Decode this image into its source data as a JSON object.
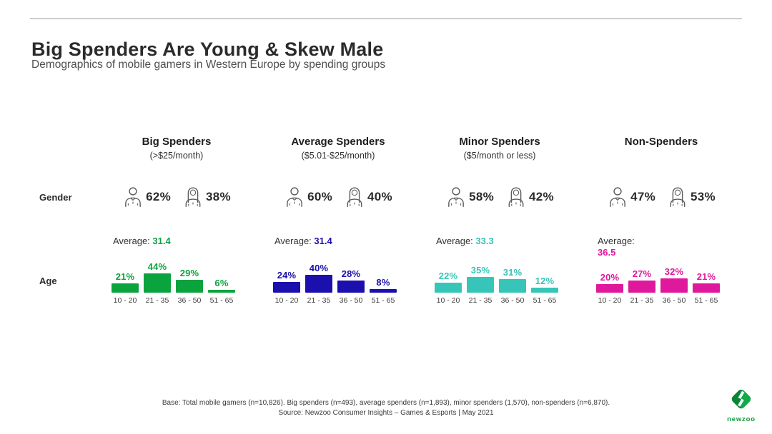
{
  "slide": {
    "title": "Big Spenders Are Young & Skew Male",
    "subtitle": "Demographics of mobile gamers in Western Europe by spending groups"
  },
  "rows": {
    "gender_label": "Gender",
    "age_label": "Age"
  },
  "average_label": "Average:",
  "age_categories": [
    "10 - 20",
    "21 - 35",
    "36 - 50",
    "51 - 65"
  ],
  "groups": [
    {
      "name": "Big Spenders",
      "range": "(>$25/month)",
      "color": "#0BA33E",
      "male_pct": "62%",
      "female_pct": "38%",
      "average": "31.4",
      "age_labels": [
        "21%",
        "44%",
        "29%",
        "6%"
      ],
      "age_values": [
        21,
        44,
        29,
        6
      ]
    },
    {
      "name": "Average Spenders",
      "range": "($5.01-$25/month)",
      "color": "#1B0FAE",
      "male_pct": "60%",
      "female_pct": "40%",
      "average": "31.4",
      "age_labels": [
        "24%",
        "40%",
        "28%",
        "8%"
      ],
      "age_values": [
        24,
        40,
        28,
        8
      ]
    },
    {
      "name": "Minor Spenders",
      "range": "($5/month or less)",
      "color": "#36C5B8",
      "male_pct": "58%",
      "female_pct": "42%",
      "average": "33.3",
      "age_labels": [
        "22%",
        "35%",
        "31%",
        "12%"
      ],
      "age_values": [
        22,
        35,
        31,
        12
      ]
    },
    {
      "name": "Non-Spenders",
      "range": "",
      "color": "#E0189C",
      "male_pct": "47%",
      "female_pct": "53%",
      "average": "36.5",
      "age_labels": [
        "20%",
        "27%",
        "32%",
        "21%"
      ],
      "age_values": [
        20,
        27,
        32,
        21
      ]
    }
  ],
  "footer": {
    "base": "Base: Total mobile gamers (n=10,826). Big spenders (n=493), average spenders (n=1,893), minor spenders (1,570), non-spenders (n=6,870).",
    "source": "Source: Newzoo Consumer Insights – Games & Esports | May 2021"
  },
  "logo": {
    "wordmark": "newzoo"
  },
  "chart_data": [
    {
      "type": "bar",
      "title": "Big Spenders (>$25/month) — Age distribution",
      "categories": [
        "10 - 20",
        "21 - 35",
        "36 - 50",
        "51 - 65"
      ],
      "values": [
        21,
        44,
        29,
        6
      ],
      "unit": "%",
      "average_age": 31.4,
      "gender": {
        "male_pct": 62,
        "female_pct": 38
      },
      "color": "#0BA33E",
      "ylim": [
        0,
        50
      ],
      "grid": false,
      "legend": "none"
    },
    {
      "type": "bar",
      "title": "Average Spenders ($5.01-$25/month) — Age distribution",
      "categories": [
        "10 - 20",
        "21 - 35",
        "36 - 50",
        "51 - 65"
      ],
      "values": [
        24,
        40,
        28,
        8
      ],
      "unit": "%",
      "average_age": 31.4,
      "gender": {
        "male_pct": 60,
        "female_pct": 40
      },
      "color": "#1B0FAE",
      "ylim": [
        0,
        50
      ],
      "grid": false,
      "legend": "none"
    },
    {
      "type": "bar",
      "title": "Minor Spenders ($5/month or less) — Age distribution",
      "categories": [
        "10 - 20",
        "21 - 35",
        "36 - 50",
        "51 - 65"
      ],
      "values": [
        22,
        35,
        31,
        12
      ],
      "unit": "%",
      "average_age": 33.3,
      "gender": {
        "male_pct": 58,
        "female_pct": 42
      },
      "color": "#36C5B8",
      "ylim": [
        0,
        50
      ],
      "grid": false,
      "legend": "none"
    },
    {
      "type": "bar",
      "title": "Non-Spenders — Age distribution",
      "categories": [
        "10 - 20",
        "21 - 35",
        "36 - 50",
        "51 - 65"
      ],
      "values": [
        20,
        27,
        32,
        21
      ],
      "unit": "%",
      "average_age": 36.5,
      "gender": {
        "male_pct": 47,
        "female_pct": 53
      },
      "color": "#E0189C",
      "ylim": [
        0,
        50
      ],
      "grid": false,
      "legend": "none"
    }
  ]
}
